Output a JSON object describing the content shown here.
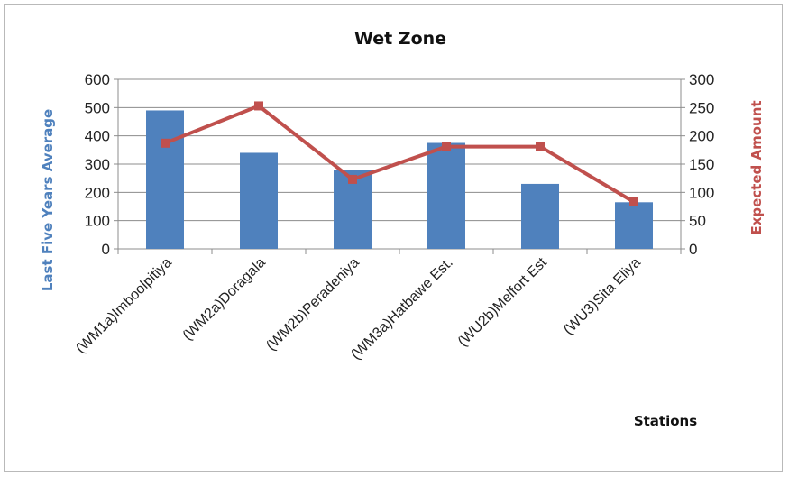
{
  "chart_data": {
    "type": "bar",
    "title": "Wet Zone",
    "xlabel": "Stations",
    "ylabel": "Last Five Years Average",
    "y2label": "Expected Amount",
    "categories": [
      "(WM1a)Imboolpitiya",
      "(WM2a)Doragala",
      "(WM2b)Peradeniya",
      "(WM3a)Hatbawe Est.",
      "(WU2b)Melfort Est",
      "(WU3)Sita Eliya"
    ],
    "series": [
      {
        "type": "bar",
        "axis": "left",
        "color": "#4f81bd",
        "values": [
          490,
          340,
          280,
          375,
          230,
          165
        ]
      },
      {
        "type": "line",
        "axis": "right",
        "color": "#c0504d",
        "values": [
          187,
          253,
          123,
          181,
          181,
          83
        ]
      }
    ],
    "ylim": [
      0,
      600
    ],
    "yticks": [
      "0",
      "100",
      "200",
      "300",
      "400",
      "500",
      "600"
    ],
    "y2lim": [
      0,
      300
    ],
    "y2ticks": [
      "0",
      "50",
      "100",
      "150",
      "200",
      "250",
      "300"
    ],
    "grid": true,
    "legend": "none",
    "colors": {
      "left_axis_label": "#4f81bd",
      "right_axis_label": "#c0504d",
      "grid": "#8c8c8c"
    }
  }
}
